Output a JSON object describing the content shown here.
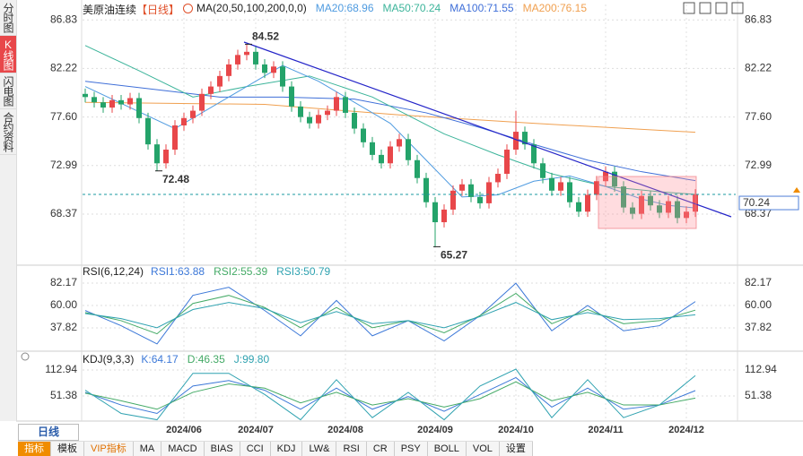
{
  "ui": {
    "tabs": [
      "分时图",
      "K线图",
      "闪电图",
      "合约资料"
    ],
    "period_button": "日线",
    "toolbar": [
      "指标",
      "模板",
      "VIP指标",
      "MA",
      "MACD",
      "BIAS",
      "CCI",
      "KDJ",
      "LW&",
      "RSI",
      "CR",
      "PSY",
      "BOLL",
      "VOL",
      "设置"
    ]
  },
  "chart_data": [
    {
      "type": "candlestick",
      "title": "美原油连续",
      "period": "【日线】",
      "indicator": "MA(20,50,100,200,0,0)",
      "categories": [
        null,
        null,
        null,
        null,
        null,
        null,
        null,
        null,
        null,
        null,
        null,
        "2024/06",
        null,
        null,
        null,
        null,
        null,
        null,
        null,
        "2024/07",
        null,
        null,
        null,
        null,
        null,
        null,
        null,
        null,
        null,
        "2024/08",
        null,
        null,
        null,
        null,
        null,
        null,
        null,
        null,
        null,
        "2024/09",
        null,
        null,
        null,
        null,
        null,
        null,
        null,
        null,
        "2024/10",
        null,
        null,
        null,
        null,
        null,
        null,
        null,
        null,
        null,
        "2024/11",
        null,
        null,
        null,
        null,
        null,
        null,
        null,
        null,
        "2024/12",
        null
      ],
      "open": [
        79.8,
        79.5,
        79.0,
        78.5,
        79.2,
        78.8,
        79.4,
        77.5,
        75.0,
        73.2,
        74.5,
        76.8,
        77.5,
        78.2,
        79.8,
        80.5,
        81.5,
        82.6,
        83.5,
        83.8,
        82.6,
        81.8,
        82.4,
        80.5,
        78.6,
        77.6,
        77.0,
        77.8,
        78.2,
        79.5,
        78.0,
        76.5,
        75.2,
        74.0,
        73.2,
        74.8,
        75.5,
        73.5,
        71.8,
        69.5,
        67.6,
        68.8,
        70.6,
        71.2,
        70.0,
        69.4,
        71.4,
        72.2,
        74.5,
        76.2,
        75.0,
        73.2,
        71.8,
        70.6,
        71.4,
        69.5,
        68.6,
        70.2,
        71.5,
        72.4,
        71.0,
        69.0,
        68.4,
        70.1,
        69.2,
        68.5,
        69.6,
        68.0,
        68.6
      ],
      "high": [
        80.3,
        80.0,
        79.5,
        79.7,
        79.7,
        79.9,
        79.9,
        78.0,
        75.5,
        75.0,
        77.3,
        78.0,
        78.7,
        80.3,
        81.0,
        82.0,
        83.1,
        84.0,
        84.52,
        84.3,
        83.1,
        82.9,
        82.9,
        81.0,
        79.1,
        78.1,
        78.3,
        78.7,
        80.0,
        80.0,
        78.5,
        77.0,
        75.7,
        74.5,
        75.3,
        76.0,
        76.0,
        74.0,
        72.3,
        70.0,
        69.3,
        71.1,
        71.7,
        71.7,
        70.5,
        71.9,
        72.7,
        75.0,
        78.2,
        76.7,
        75.5,
        73.7,
        72.3,
        71.9,
        71.9,
        70.0,
        70.7,
        72.0,
        72.9,
        72.9,
        71.5,
        69.5,
        70.6,
        70.6,
        69.7,
        70.1,
        70.1,
        69.1,
        70.74
      ],
      "low": [
        79.0,
        78.5,
        78.0,
        78.0,
        78.3,
        78.3,
        77.0,
        74.5,
        72.48,
        72.7,
        74.0,
        76.3,
        77.0,
        77.7,
        79.3,
        80.0,
        81.0,
        82.1,
        83.0,
        82.1,
        81.3,
        81.3,
        80.0,
        78.1,
        77.1,
        76.5,
        76.5,
        77.3,
        77.7,
        77.5,
        76.0,
        74.7,
        73.5,
        72.7,
        72.7,
        74.3,
        73.0,
        71.3,
        69.0,
        65.27,
        67.1,
        68.3,
        70.1,
        69.5,
        68.9,
        68.9,
        70.9,
        71.7,
        74.0,
        74.5,
        72.7,
        71.3,
        70.1,
        70.1,
        69.0,
        68.1,
        68.1,
        69.7,
        71.0,
        70.5,
        68.5,
        67.9,
        67.9,
        68.7,
        68.0,
        68.0,
        67.5,
        67.5,
        68.1
      ],
      "close": [
        79.5,
        79.0,
        78.5,
        79.2,
        78.8,
        79.4,
        77.5,
        75.0,
        73.2,
        74.5,
        76.8,
        77.5,
        78.2,
        79.8,
        80.5,
        81.5,
        82.6,
        83.5,
        83.8,
        82.6,
        81.8,
        82.4,
        80.5,
        78.6,
        77.6,
        77.0,
        77.8,
        78.2,
        79.5,
        78.0,
        76.5,
        75.2,
        74.0,
        73.2,
        74.8,
        75.5,
        73.5,
        71.8,
        69.5,
        67.6,
        68.8,
        70.6,
        71.2,
        70.0,
        69.4,
        71.4,
        72.2,
        74.5,
        76.2,
        75.0,
        73.2,
        71.8,
        70.6,
        71.4,
        69.5,
        68.6,
        70.2,
        71.5,
        72.4,
        71.0,
        69.0,
        68.4,
        70.1,
        69.2,
        68.5,
        69.6,
        68.0,
        68.6,
        70.24
      ],
      "up_color": "#e8474a",
      "down_color": "#24a36a",
      "series": [
        {
          "name": "MA20",
          "label": "MA20:68.96",
          "color": "#4f9be0",
          "x": [
            0,
            5,
            10,
            16,
            22,
            26,
            30,
            34,
            38,
            42,
            46,
            50,
            54,
            58,
            62,
            65,
            68
          ],
          "values": [
            80.5,
            78.5,
            76.5,
            79.5,
            82.5,
            81.0,
            79.0,
            77.0,
            73.5,
            70.0,
            70.2,
            71.5,
            72.0,
            71.0,
            69.8,
            69.2,
            68.96
          ]
        },
        {
          "name": "MA50",
          "label": "MA50:70.24",
          "color": "#3cb49a",
          "x": [
            0,
            6,
            12,
            18,
            25,
            32,
            40,
            46,
            52,
            58,
            64,
            68
          ],
          "values": [
            84.4,
            82.0,
            79.5,
            80.5,
            81.5,
            79.5,
            76.0,
            74.0,
            72.2,
            71.0,
            70.5,
            70.24
          ]
        },
        {
          "name": "MA100",
          "label": "MA100:71.55",
          "color": "#3f6fd8",
          "x": [
            0,
            8,
            15,
            22,
            30,
            38,
            44,
            50,
            56,
            62,
            68
          ],
          "values": [
            81.0,
            80.2,
            79.5,
            79.5,
            79.3,
            78.0,
            76.6,
            75.0,
            73.5,
            72.4,
            71.55
          ]
        },
        {
          "name": "MA200",
          "label": "MA200:76.15",
          "color": "#f0a050",
          "x": [
            0,
            20,
            35,
            50,
            68
          ],
          "values": [
            79.0,
            78.8,
            77.8,
            77.0,
            76.15
          ]
        }
      ],
      "ylim": [
        63.6,
        88.3
      ],
      "yticks": [
        86.83,
        82.22,
        {
          "value": 77.6,
          "label": "77.60"
        },
        72.99,
        68.37
      ],
      "grid": true
    },
    {
      "type": "line",
      "title": "RSI(6,12,24)",
      "x": [
        0,
        4,
        8,
        12,
        16,
        20,
        24,
        28,
        32,
        36,
        40,
        44,
        48,
        52,
        56,
        60,
        64,
        68
      ],
      "series": [
        {
          "name": "RSI1",
          "label": "RSI1:63.88",
          "color": "#3c78d8",
          "values": [
            55,
            40,
            22,
            70,
            78,
            55,
            30,
            65,
            30,
            45,
            25,
            50,
            82,
            35,
            60,
            35,
            40,
            63.88
          ]
        },
        {
          "name": "RSI2",
          "label": "RSI2:55.39",
          "color": "#44aa66",
          "values": [
            53,
            45,
            32,
            62,
            70,
            58,
            38,
            58,
            38,
            45,
            33,
            50,
            72,
            42,
            56,
            42,
            45,
            55.39
          ]
        },
        {
          "name": "RSI3",
          "label": "RSI3:50.79",
          "color": "#2fa2b0",
          "values": [
            52,
            47,
            38,
            56,
            63,
            57,
            43,
            54,
            42,
            45,
            38,
            49,
            63,
            46,
            53,
            46,
            47,
            50.79
          ]
        }
      ],
      "ylim": [
        16.6,
        96.3
      ],
      "yticks": [
        82.17,
        {
          "value": 60,
          "label": "60.00"
        },
        37.82
      ],
      "grid": true
    },
    {
      "type": "line",
      "title": "KDJ(9,3,3)",
      "x": [
        0,
        4,
        8,
        12,
        16,
        20,
        24,
        28,
        32,
        36,
        40,
        44,
        48,
        52,
        56,
        60,
        64,
        68
      ],
      "series": [
        {
          "name": "K",
          "label": "K:64.17",
          "color": "#3c78d8",
          "values": [
            60,
            30,
            10,
            75,
            88,
            65,
            20,
            70,
            20,
            50,
            15,
            55,
            95,
            25,
            70,
            20,
            30,
            64.17
          ]
        },
        {
          "name": "D",
          "label": "D:46.35",
          "color": "#44aa66",
          "values": [
            58,
            40,
            20,
            60,
            80,
            70,
            35,
            60,
            30,
            45,
            25,
            45,
            85,
            40,
            60,
            30,
            30,
            46.35
          ]
        },
        {
          "name": "J",
          "label": "J:99.80",
          "color": "#2fa2b0",
          "values": [
            65,
            10,
            -5,
            105,
            105,
            55,
            -5,
            90,
            0,
            60,
            -5,
            75,
            115,
            0,
            90,
            0,
            30,
            99.8
          ]
        }
      ],
      "ylim": [
        -8.1,
        151.2
      ],
      "yticks": [
        112.94,
        51.38
      ],
      "grid": true
    }
  ]
}
